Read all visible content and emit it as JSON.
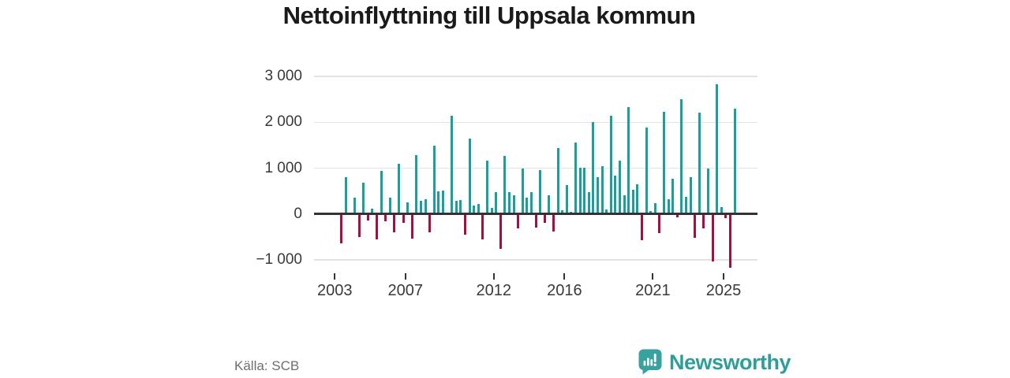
{
  "title": "Nettoinflyttning till Uppsala kommun",
  "source": "Källa: SCB",
  "branding": {
    "name": "Newsworthy"
  },
  "colors": {
    "positive": "#18a19b",
    "negative": "#a50d45",
    "grid": "#e3e3e3",
    "zero_line": "#333333",
    "brand_teal": "#2f9e9a"
  },
  "chart_data": {
    "type": "bar",
    "title": "Nettoinflyttning till Uppsala kommun",
    "xlabel": "",
    "ylabel": "",
    "ylim": [
      -1000,
      3000
    ],
    "grid": true,
    "legend_position": "none",
    "y_ticks": [
      {
        "value": 3000,
        "label": "3 000"
      },
      {
        "value": 2000,
        "label": "2 000"
      },
      {
        "value": 1000,
        "label": "1 000"
      },
      {
        "value": 0,
        "label": "0"
      },
      {
        "value": -1000,
        "label": "−1 000"
      }
    ],
    "x_ticks": [
      {
        "year": 2003,
        "label": "2003"
      },
      {
        "year": 2007,
        "label": "2007"
      },
      {
        "year": 2012,
        "label": "2012"
      },
      {
        "year": 2016,
        "label": "2016"
      },
      {
        "year": 2021,
        "label": "2021"
      },
      {
        "year": 2025,
        "label": "2025"
      }
    ],
    "categories": [
      "2003-Q1",
      "2003-Q2",
      "2003-Q3",
      "2003-Q4",
      "2004-Q1",
      "2004-Q2",
      "2004-Q3",
      "2004-Q4",
      "2005-Q1",
      "2005-Q2",
      "2005-Q3",
      "2005-Q4",
      "2006-Q1",
      "2006-Q2",
      "2006-Q3",
      "2006-Q4",
      "2007-Q1",
      "2007-Q2",
      "2007-Q3",
      "2007-Q4",
      "2008-Q1",
      "2008-Q2",
      "2008-Q3",
      "2008-Q4",
      "2009-Q1",
      "2009-Q2",
      "2009-Q3",
      "2009-Q4",
      "2010-Q1",
      "2010-Q2",
      "2010-Q3",
      "2010-Q4",
      "2011-Q1",
      "2011-Q2",
      "2011-Q3",
      "2011-Q4",
      "2012-Q1",
      "2012-Q2",
      "2012-Q3",
      "2012-Q4",
      "2013-Q1",
      "2013-Q2",
      "2013-Q3",
      "2013-Q4",
      "2014-Q1",
      "2014-Q2",
      "2014-Q3",
      "2014-Q4",
      "2015-Q1",
      "2015-Q2",
      "2015-Q3",
      "2015-Q4",
      "2016-Q1",
      "2016-Q2",
      "2016-Q3",
      "2016-Q4",
      "2017-Q1",
      "2017-Q2",
      "2017-Q3",
      "2017-Q4",
      "2018-Q1",
      "2018-Q2",
      "2018-Q3",
      "2018-Q4",
      "2019-Q1",
      "2019-Q2",
      "2019-Q3",
      "2019-Q4",
      "2020-Q1",
      "2020-Q2",
      "2020-Q3",
      "2020-Q4",
      "2021-Q1",
      "2021-Q2",
      "2021-Q3",
      "2021-Q4",
      "2022-Q1",
      "2022-Q2",
      "2022-Q3",
      "2022-Q4",
      "2023-Q1",
      "2023-Q2",
      "2023-Q3",
      "2023-Q4",
      "2024-Q1",
      "2024-Q2",
      "2024-Q3",
      "2024-Q4",
      "2025-Q1",
      "2025-Q2",
      "2025-Q3"
    ],
    "values": [
      20,
      -620,
      810,
      15,
      360,
      -480,
      690,
      -120,
      110,
      -530,
      940,
      -130,
      360,
      -380,
      1090,
      -160,
      260,
      -510,
      1290,
      290,
      330,
      -380,
      1490,
      500,
      505,
      20,
      2150,
      280,
      305,
      -420,
      1640,
      190,
      215,
      -520,
      1160,
      135,
      480,
      -735,
      1270,
      480,
      405,
      -290,
      1000,
      360,
      480,
      -270,
      965,
      -160,
      405,
      -360,
      1435,
      90,
      635,
      40,
      1560,
      1010,
      1010,
      480,
      2005,
      800,
      1050,
      100,
      2150,
      840,
      1170,
      400,
      2330,
      520,
      650,
      -545,
      1890,
      60,
      230,
      -390,
      2220,
      330,
      760,
      -55,
      2500,
      365,
      810,
      -490,
      2210,
      -290,
      1000,
      -1000,
      2830,
      155,
      -60,
      -1140,
      2295
    ]
  }
}
